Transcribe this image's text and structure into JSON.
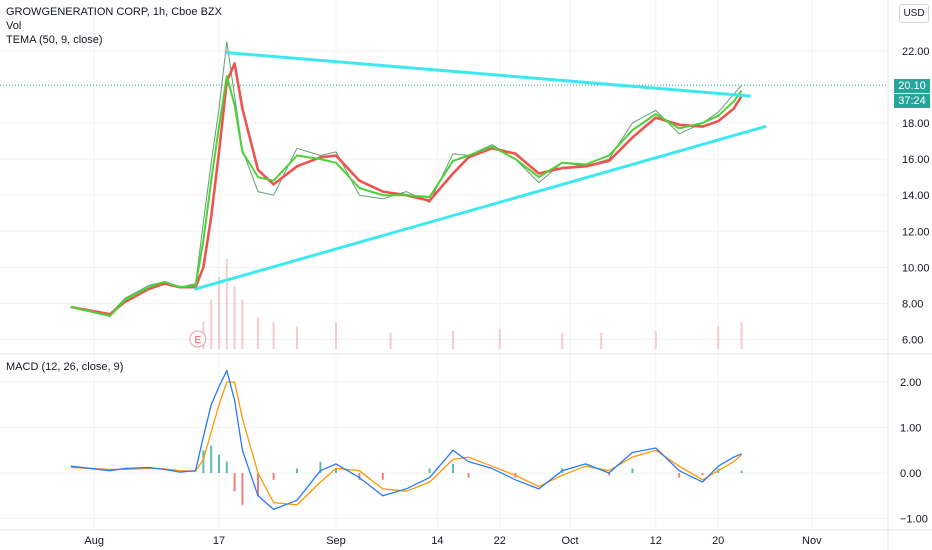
{
  "header": {
    "symbol_line": "GROWGENERATION CORP, 1h, Cboe BZX",
    "vol_label": "Vol",
    "tema_label": "TEMA (50, 9, close)",
    "currency_button": "USD"
  },
  "price_tags": {
    "last_price": "20.10",
    "countdown": "37:24"
  },
  "macd_panel": {
    "label": "MACD (12, 26, close, 9)"
  },
  "earnings_marker": "E",
  "colors": {
    "trendline": "#3de8f0",
    "tema": "#4cd137",
    "tema_signal": "#ef5350",
    "macd_line": "#2979ff",
    "signal_line": "#ff9800",
    "hist_up": "#26a69a",
    "hist_down": "#ef5350",
    "price_tag": "#26a69a"
  },
  "chart_data": [
    {
      "type": "line",
      "panel": "price",
      "title": "GROWGENERATION CORP, 1h, Cboe BZX",
      "x_ticks": [
        "Aug",
        "17",
        "Sep",
        "14",
        "22",
        "Oct",
        "12",
        "20",
        "Nov"
      ],
      "y_ticks": [
        "22.00",
        "20.00",
        "18.00",
        "16.00",
        "14.00",
        "12.00",
        "10.00",
        "8.00",
        "6.00"
      ],
      "ylim": [
        5.5,
        24
      ],
      "grid": true,
      "last_price": 20.1,
      "price_line": [
        [
          "Jul 29",
          7.8
        ],
        [
          "Aug 3",
          7.4
        ],
        [
          "Aug 5",
          8.3
        ],
        [
          "Aug 8",
          9.0
        ],
        [
          "Aug 10",
          9.2
        ],
        [
          "Aug 12",
          8.9
        ],
        [
          "Aug 14",
          9.1
        ],
        [
          "Aug 15",
          12.5
        ],
        [
          "Aug 16",
          15.8
        ],
        [
          "Aug 17",
          18.8
        ],
        [
          "Aug 18",
          22.5
        ],
        [
          "Aug 19",
          19.5
        ],
        [
          "Aug 20",
          16.5
        ],
        [
          "Aug 22",
          14.2
        ],
        [
          "Aug 24",
          14.0
        ],
        [
          "Aug 27",
          16.6
        ],
        [
          "Aug 30",
          16.2
        ],
        [
          "Sep 1",
          16.4
        ],
        [
          "Sep 4",
          14.0
        ],
        [
          "Sep 7",
          13.8
        ],
        [
          "Sep 10",
          14.2
        ],
        [
          "Sep 13",
          13.6
        ],
        [
          "Sep 16",
          16.3
        ],
        [
          "Sep 18",
          16.2
        ],
        [
          "Sep 21",
          16.8
        ],
        [
          "Sep 24",
          16.0
        ],
        [
          "Sep 27",
          14.7
        ],
        [
          "Sep 30",
          15.8
        ],
        [
          "Oct 3",
          15.6
        ],
        [
          "Oct 6",
          16.0
        ],
        [
          "Oct 9",
          18.0
        ],
        [
          "Oct 12",
          18.7
        ],
        [
          "Oct 15",
          17.4
        ],
        [
          "Oct 18",
          18.0
        ],
        [
          "Oct 20",
          18.6
        ],
        [
          "Oct 22",
          19.6
        ],
        [
          "Oct 23",
          20.1
        ]
      ],
      "tema_line": [
        [
          "Jul 29",
          7.8
        ],
        [
          "Aug 3",
          7.3
        ],
        [
          "Aug 5",
          8.2
        ],
        [
          "Aug 8",
          8.9
        ],
        [
          "Aug 10",
          9.2
        ],
        [
          "Aug 12",
          8.9
        ],
        [
          "Aug 14",
          9.0
        ],
        [
          "Aug 15",
          11.5
        ],
        [
          "Aug 16",
          14.8
        ],
        [
          "Aug 17",
          17.8
        ],
        [
          "Aug 18",
          20.6
        ],
        [
          "Aug 19",
          19.0
        ],
        [
          "Aug 20",
          16.4
        ],
        [
          "Aug 22",
          15.0
        ],
        [
          "Aug 24",
          14.8
        ],
        [
          "Aug 27",
          16.2
        ],
        [
          "Aug 30",
          16.0
        ],
        [
          "Sep 1",
          15.8
        ],
        [
          "Sep 4",
          14.4
        ],
        [
          "Sep 7",
          14.0
        ],
        [
          "Sep 10",
          14.0
        ],
        [
          "Sep 13",
          13.9
        ],
        [
          "Sep 16",
          15.9
        ],
        [
          "Sep 18",
          16.2
        ],
        [
          "Sep 21",
          16.7
        ],
        [
          "Sep 24",
          16.0
        ],
        [
          "Sep 27",
          15.0
        ],
        [
          "Sep 30",
          15.8
        ],
        [
          "Oct 3",
          15.7
        ],
        [
          "Oct 6",
          16.2
        ],
        [
          "Oct 9",
          17.6
        ],
        [
          "Oct 12",
          18.5
        ],
        [
          "Oct 15",
          17.7
        ],
        [
          "Oct 18",
          18.0
        ],
        [
          "Oct 20",
          18.4
        ],
        [
          "Oct 22",
          19.2
        ],
        [
          "Oct 23",
          19.8
        ]
      ],
      "tema_signal_line": [
        [
          "Jul 29",
          7.8
        ],
        [
          "Aug 3",
          7.4
        ],
        [
          "Aug 5",
          8.1
        ],
        [
          "Aug 8",
          8.8
        ],
        [
          "Aug 10",
          9.1
        ],
        [
          "Aug 12",
          8.9
        ],
        [
          "Aug 14",
          8.9
        ],
        [
          "Aug 15",
          10.0
        ],
        [
          "Aug 16",
          12.8
        ],
        [
          "Aug 17",
          16.4
        ],
        [
          "Aug 18",
          20.3
        ],
        [
          "Aug 19",
          21.3
        ],
        [
          "Aug 20",
          18.8
        ],
        [
          "Aug 22",
          15.4
        ],
        [
          "Aug 24",
          14.6
        ],
        [
          "Aug 27",
          15.6
        ],
        [
          "Aug 30",
          16.1
        ],
        [
          "Sep 1",
          16.2
        ],
        [
          "Sep 4",
          14.8
        ],
        [
          "Sep 7",
          14.2
        ],
        [
          "Sep 10",
          14.0
        ],
        [
          "Sep 13",
          13.7
        ],
        [
          "Sep 16",
          15.2
        ],
        [
          "Sep 18",
          16.1
        ],
        [
          "Sep 21",
          16.6
        ],
        [
          "Sep 24",
          16.3
        ],
        [
          "Sep 27",
          15.2
        ],
        [
          "Sep 30",
          15.5
        ],
        [
          "Oct 3",
          15.6
        ],
        [
          "Oct 6",
          15.9
        ],
        [
          "Oct 9",
          17.2
        ],
        [
          "Oct 12",
          18.3
        ],
        [
          "Oct 15",
          17.9
        ],
        [
          "Oct 18",
          17.8
        ],
        [
          "Oct 20",
          18.1
        ],
        [
          "Oct 22",
          18.8
        ],
        [
          "Oct 23",
          19.5
        ]
      ],
      "trendlines": [
        {
          "points": [
            [
              "Aug 18",
              21.9
            ],
            [
              "Oct 24",
              19.5
            ]
          ]
        },
        {
          "points": [
            [
              "Aug 14",
              8.8
            ],
            [
              "Oct 26",
              17.8
            ]
          ]
        }
      ],
      "earnings_date": "Aug 13"
    },
    {
      "type": "bar",
      "panel": "volume",
      "label": "Vol",
      "note": "relative volume bars",
      "bars": [
        [
          "Aug 15",
          0.3
        ],
        [
          "Aug 16",
          0.55
        ],
        [
          "Aug 17",
          0.8
        ],
        [
          "Aug 18",
          1.0
        ],
        [
          "Aug 19",
          0.7
        ],
        [
          "Aug 20",
          0.55
        ],
        [
          "Aug 22",
          0.35
        ],
        [
          "Aug 24",
          0.3
        ],
        [
          "Aug 27",
          0.25
        ],
        [
          "Sep 1",
          0.3
        ],
        [
          "Sep 8",
          0.18
        ],
        [
          "Sep 16",
          0.2
        ],
        [
          "Sep 22",
          0.22
        ],
        [
          "Sep 30",
          0.18
        ],
        [
          "Oct 5",
          0.18
        ],
        [
          "Oct 12",
          0.2
        ],
        [
          "Oct 20",
          0.25
        ],
        [
          "Oct 23",
          0.3
        ]
      ]
    },
    {
      "type": "line",
      "panel": "macd",
      "title": "MACD (12, 26, close, 9)",
      "y_ticks": [
        "2.00",
        "1.00",
        "0.00",
        "−1.00"
      ],
      "ylim": [
        -1.2,
        2.5
      ],
      "macd_line": [
        [
          "Jul 29",
          0.15
        ],
        [
          "Aug 3",
          0.05
        ],
        [
          "Aug 5",
          0.1
        ],
        [
          "Aug 8",
          0.12
        ],
        [
          "Aug 10",
          0.08
        ],
        [
          "Aug 12",
          0.02
        ],
        [
          "Aug 14",
          0.05
        ],
        [
          "Aug 15",
          0.8
        ],
        [
          "Aug 16",
          1.5
        ],
        [
          "Aug 17",
          1.9
        ],
        [
          "Aug 18",
          2.25
        ],
        [
          "Aug 19",
          1.6
        ],
        [
          "Aug 20",
          0.5
        ],
        [
          "Aug 22",
          -0.5
        ],
        [
          "Aug 24",
          -0.8
        ],
        [
          "Aug 27",
          -0.6
        ],
        [
          "Aug 30",
          0.05
        ],
        [
          "Sep 1",
          0.2
        ],
        [
          "Sep 4",
          -0.1
        ],
        [
          "Sep 7",
          -0.5
        ],
        [
          "Sep 10",
          -0.35
        ],
        [
          "Sep 13",
          -0.1
        ],
        [
          "Sep 16",
          0.5
        ],
        [
          "Sep 18",
          0.25
        ],
        [
          "Sep 21",
          0.1
        ],
        [
          "Sep 24",
          -0.15
        ],
        [
          "Sep 27",
          -0.35
        ],
        [
          "Sep 30",
          0.05
        ],
        [
          "Oct 3",
          0.2
        ],
        [
          "Oct 6",
          0.0
        ],
        [
          "Oct 9",
          0.45
        ],
        [
          "Oct 12",
          0.55
        ],
        [
          "Oct 15",
          0.05
        ],
        [
          "Oct 18",
          -0.2
        ],
        [
          "Oct 20",
          0.15
        ],
        [
          "Oct 22",
          0.35
        ],
        [
          "Oct 23",
          0.42
        ]
      ],
      "signal_line": [
        [
          "Jul 29",
          0.12
        ],
        [
          "Aug 3",
          0.08
        ],
        [
          "Aug 5",
          0.08
        ],
        [
          "Aug 8",
          0.1
        ],
        [
          "Aug 10",
          0.09
        ],
        [
          "Aug 12",
          0.05
        ],
        [
          "Aug 14",
          0.04
        ],
        [
          "Aug 15",
          0.3
        ],
        [
          "Aug 16",
          0.9
        ],
        [
          "Aug 17",
          1.5
        ],
        [
          "Aug 18",
          2.0
        ],
        [
          "Aug 19",
          2.0
        ],
        [
          "Aug 20",
          1.2
        ],
        [
          "Aug 22",
          0.0
        ],
        [
          "Aug 24",
          -0.65
        ],
        [
          "Aug 27",
          -0.7
        ],
        [
          "Aug 30",
          -0.2
        ],
        [
          "Sep 1",
          0.1
        ],
        [
          "Sep 4",
          0.05
        ],
        [
          "Sep 7",
          -0.35
        ],
        [
          "Sep 10",
          -0.4
        ],
        [
          "Sep 13",
          -0.2
        ],
        [
          "Sep 16",
          0.3
        ],
        [
          "Sep 18",
          0.35
        ],
        [
          "Sep 21",
          0.15
        ],
        [
          "Sep 24",
          -0.05
        ],
        [
          "Sep 27",
          -0.3
        ],
        [
          "Sep 30",
          -0.05
        ],
        [
          "Oct 3",
          0.15
        ],
        [
          "Oct 6",
          0.05
        ],
        [
          "Oct 9",
          0.35
        ],
        [
          "Oct 12",
          0.5
        ],
        [
          "Oct 15",
          0.15
        ],
        [
          "Oct 18",
          -0.15
        ],
        [
          "Oct 20",
          0.05
        ],
        [
          "Oct 22",
          0.25
        ],
        [
          "Oct 23",
          0.4
        ]
      ],
      "histogram": [
        [
          "Aug 15",
          0.5
        ],
        [
          "Aug 16",
          0.6
        ],
        [
          "Aug 17",
          0.4
        ],
        [
          "Aug 18",
          0.25
        ],
        [
          "Aug 19",
          -0.4
        ],
        [
          "Aug 20",
          -0.7
        ],
        [
          "Aug 22",
          -0.5
        ],
        [
          "Aug 24",
          -0.15
        ],
        [
          "Aug 27",
          0.1
        ],
        [
          "Aug 30",
          0.25
        ],
        [
          "Sep 1",
          0.1
        ],
        [
          "Sep 4",
          -0.15
        ],
        [
          "Sep 7",
          -0.15
        ],
        [
          "Sep 13",
          0.1
        ],
        [
          "Sep 16",
          0.2
        ],
        [
          "Sep 18",
          -0.1
        ],
        [
          "Sep 24",
          -0.1
        ],
        [
          "Sep 30",
          0.1
        ],
        [
          "Oct 6",
          -0.05
        ],
        [
          "Oct 9",
          0.1
        ],
        [
          "Oct 15",
          -0.1
        ],
        [
          "Oct 18",
          -0.05
        ],
        [
          "Oct 20",
          0.1
        ],
        [
          "Oct 23",
          0.05
        ]
      ]
    }
  ]
}
